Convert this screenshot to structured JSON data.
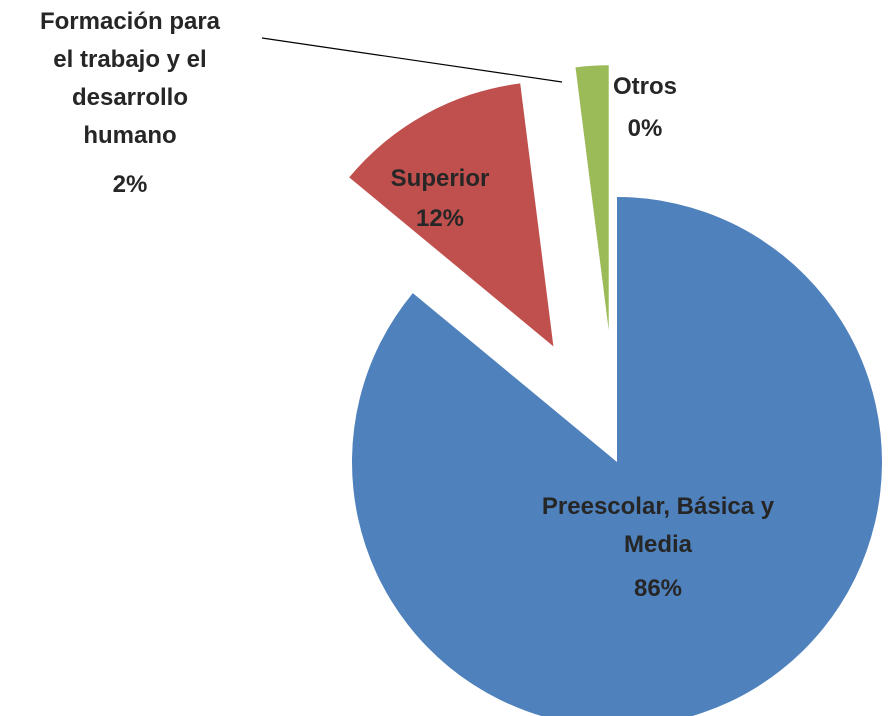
{
  "chart_data": {
    "type": "pie",
    "categories": [
      "Preescolar, Básica y Media",
      "Superior",
      "Formación para el trabajo y el desarrollo humano",
      "Otros"
    ],
    "values": [
      86,
      12,
      2,
      0
    ],
    "value_labels": [
      "86%",
      "12%",
      "2%",
      "0%"
    ],
    "colors": [
      "#4f81bd",
      "#c0504d",
      "#9bbb59",
      "#8064a2"
    ]
  }
}
